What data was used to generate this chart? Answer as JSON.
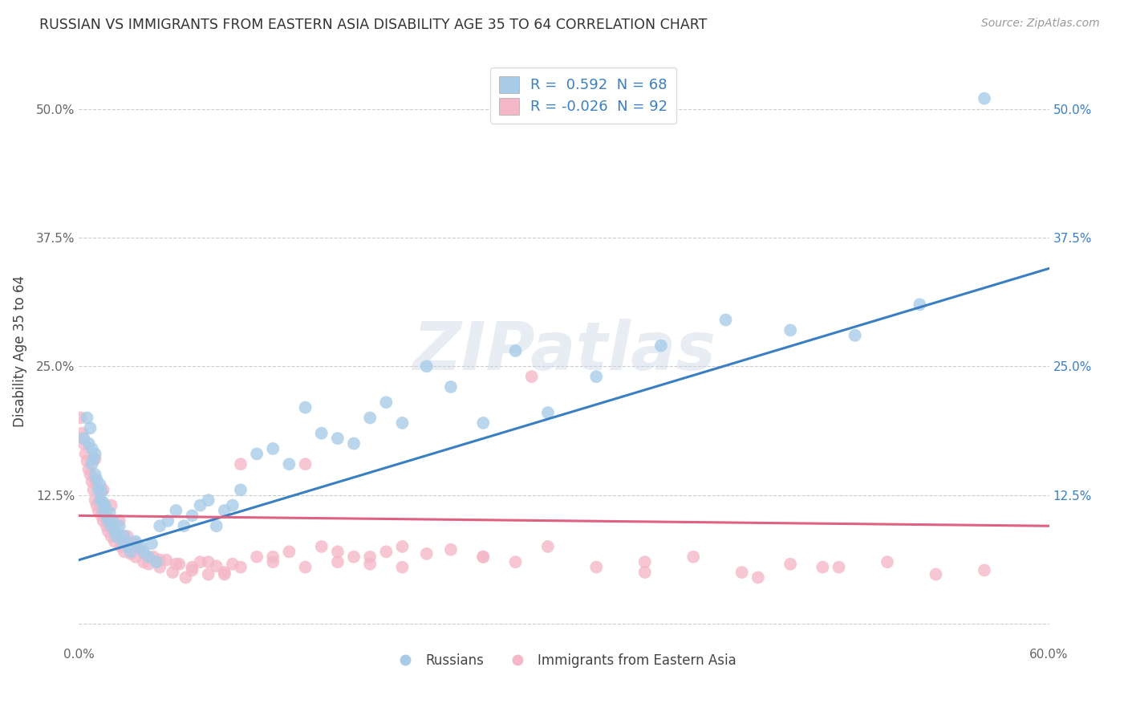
{
  "title": "RUSSIAN VS IMMIGRANTS FROM EASTERN ASIA DISABILITY AGE 35 TO 64 CORRELATION CHART",
  "source": "Source: ZipAtlas.com",
  "ylabel": "Disability Age 35 to 64",
  "xlim": [
    0.0,
    0.6
  ],
  "ylim": [
    -0.02,
    0.55
  ],
  "xtick_vals": [
    0.0,
    0.6
  ],
  "xtick_labels": [
    "0.0%",
    "60.0%"
  ],
  "ytick_vals": [
    0.0,
    0.125,
    0.25,
    0.375,
    0.5
  ],
  "ytick_labels_left": [
    "",
    "12.5%",
    "25.0%",
    "37.5%",
    "50.0%"
  ],
  "ytick_labels_right": [
    "",
    "12.5%",
    "25.0%",
    "37.5%",
    "50.0%"
  ],
  "blue_color": "#a8cce8",
  "pink_color": "#f4b8c8",
  "blue_line_color": "#3a7fc1",
  "pink_line_color": "#e06080",
  "watermark": "ZIPatlas",
  "background_color": "#ffffff",
  "grid_color": "#cccccc",
  "russians_x": [
    0.003,
    0.005,
    0.006,
    0.007,
    0.008,
    0.008,
    0.009,
    0.01,
    0.01,
    0.011,
    0.012,
    0.013,
    0.013,
    0.014,
    0.015,
    0.015,
    0.016,
    0.017,
    0.018,
    0.019,
    0.02,
    0.021,
    0.022,
    0.023,
    0.025,
    0.027,
    0.028,
    0.03,
    0.032,
    0.035,
    0.038,
    0.04,
    0.043,
    0.045,
    0.048,
    0.05,
    0.055,
    0.06,
    0.065,
    0.07,
    0.075,
    0.08,
    0.085,
    0.09,
    0.095,
    0.1,
    0.11,
    0.12,
    0.13,
    0.14,
    0.15,
    0.16,
    0.17,
    0.18,
    0.19,
    0.2,
    0.215,
    0.23,
    0.25,
    0.27,
    0.29,
    0.32,
    0.36,
    0.4,
    0.44,
    0.48,
    0.52,
    0.56
  ],
  "russians_y": [
    0.18,
    0.2,
    0.175,
    0.19,
    0.17,
    0.155,
    0.16,
    0.145,
    0.165,
    0.14,
    0.13,
    0.135,
    0.12,
    0.128,
    0.118,
    0.11,
    0.115,
    0.105,
    0.1,
    0.108,
    0.095,
    0.1,
    0.09,
    0.085,
    0.095,
    0.08,
    0.085,
    0.075,
    0.07,
    0.08,
    0.075,
    0.07,
    0.065,
    0.078,
    0.06,
    0.095,
    0.1,
    0.11,
    0.095,
    0.105,
    0.115,
    0.12,
    0.095,
    0.11,
    0.115,
    0.13,
    0.165,
    0.17,
    0.155,
    0.21,
    0.185,
    0.18,
    0.175,
    0.2,
    0.215,
    0.195,
    0.25,
    0.23,
    0.195,
    0.265,
    0.205,
    0.24,
    0.27,
    0.295,
    0.285,
    0.28,
    0.31,
    0.51
  ],
  "eastasia_x": [
    0.001,
    0.002,
    0.003,
    0.004,
    0.005,
    0.006,
    0.007,
    0.008,
    0.009,
    0.01,
    0.01,
    0.011,
    0.012,
    0.013,
    0.014,
    0.015,
    0.016,
    0.017,
    0.018,
    0.019,
    0.02,
    0.022,
    0.024,
    0.026,
    0.028,
    0.03,
    0.032,
    0.035,
    0.038,
    0.04,
    0.043,
    0.046,
    0.05,
    0.054,
    0.058,
    0.062,
    0.066,
    0.07,
    0.075,
    0.08,
    0.085,
    0.09,
    0.095,
    0.1,
    0.11,
    0.12,
    0.13,
    0.14,
    0.15,
    0.16,
    0.17,
    0.18,
    0.19,
    0.2,
    0.215,
    0.23,
    0.25,
    0.27,
    0.29,
    0.32,
    0.35,
    0.38,
    0.41,
    0.44,
    0.47,
    0.5,
    0.53,
    0.56,
    0.01,
    0.015,
    0.02,
    0.025,
    0.03,
    0.035,
    0.04,
    0.05,
    0.06,
    0.07,
    0.08,
    0.09,
    0.1,
    0.12,
    0.14,
    0.16,
    0.18,
    0.2,
    0.25,
    0.35,
    0.28,
    0.42,
    0.46
  ],
  "eastasia_y": [
    0.2,
    0.185,
    0.175,
    0.165,
    0.158,
    0.15,
    0.145,
    0.138,
    0.13,
    0.12,
    0.14,
    0.115,
    0.11,
    0.118,
    0.105,
    0.1,
    0.108,
    0.095,
    0.09,
    0.098,
    0.085,
    0.08,
    0.088,
    0.075,
    0.07,
    0.078,
    0.068,
    0.065,
    0.072,
    0.06,
    0.058,
    0.065,
    0.055,
    0.062,
    0.05,
    0.058,
    0.045,
    0.052,
    0.06,
    0.048,
    0.056,
    0.05,
    0.058,
    0.055,
    0.065,
    0.06,
    0.07,
    0.055,
    0.075,
    0.06,
    0.065,
    0.058,
    0.07,
    0.055,
    0.068,
    0.072,
    0.065,
    0.06,
    0.075,
    0.055,
    0.06,
    0.065,
    0.05,
    0.058,
    0.055,
    0.06,
    0.048,
    0.052,
    0.16,
    0.13,
    0.115,
    0.1,
    0.085,
    0.078,
    0.068,
    0.062,
    0.058,
    0.055,
    0.06,
    0.048,
    0.155,
    0.065,
    0.155,
    0.07,
    0.065,
    0.075,
    0.065,
    0.05,
    0.24,
    0.045,
    0.055
  ]
}
